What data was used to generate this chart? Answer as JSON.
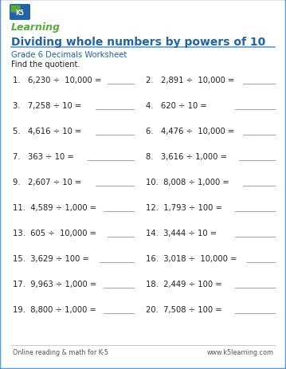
{
  "title": "Dividing whole numbers by powers of 10",
  "subtitle": "Grade 6 Decimals Worksheet",
  "instruction": "Find the quotient.",
  "left_problems": [
    "1.   6,230 ÷  10,000 =",
    "3.   7,258 ÷ 10 =",
    "5.   4,616 ÷ 10 =",
    "7.   363 ÷ 10 =",
    "9.   2,607 ÷ 10 =",
    "11.  4,589 ÷ 1,000 =",
    "13.  605 ÷  10,000 =",
    "15.  3,629 ÷ 100 =",
    "17.  9,963 ÷ 1,000 =",
    "19.  8,800 ÷ 1,000 ="
  ],
  "right_problems": [
    "2.   2,891 ÷  10,000 =",
    "4.   620 ÷ 10 =",
    "6.   4,476 ÷  10,000 =",
    "8.   3,616 ÷ 1,000 =",
    "10.  8,008 ÷ 1,000 =",
    "12.  1,793 ÷ 100 =",
    "14.  3,444 ÷ 10 =",
    "16.  3,018 ÷  10,000 =",
    "18.  2,449 ÷ 100 =",
    "20.  7,508 ÷ 100 ="
  ],
  "left_line_starts": [
    135,
    120,
    120,
    110,
    120,
    130,
    135,
    125,
    130,
    130
  ],
  "right_line_starts": [
    305,
    295,
    305,
    300,
    305,
    295,
    295,
    310,
    295,
    295
  ],
  "footer_left": "Online reading & math for K-5",
  "footer_right": "www.k5learning.com",
  "bg_color": "#ffffff",
  "border_color": "#5b9bd5",
  "title_color": "#2163a8",
  "subtitle_color": "#2163a8",
  "problem_color": "#222222",
  "line_color": "#aaaaaa",
  "footer_color": "#555555",
  "logo_green": "#5aaa3a",
  "logo_blue": "#2163a8"
}
